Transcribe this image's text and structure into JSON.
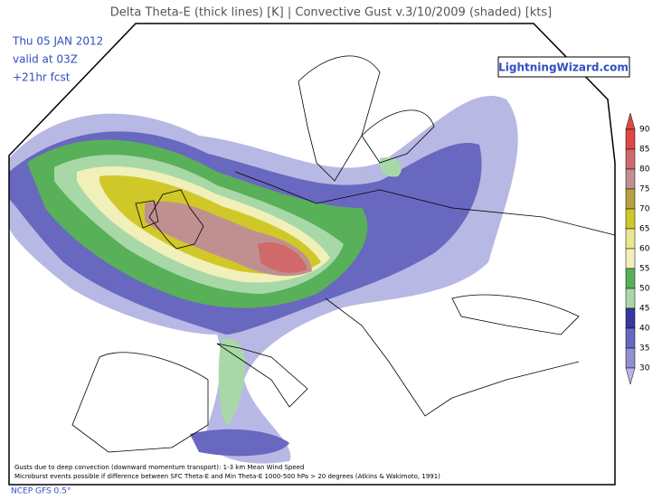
{
  "title": "Delta Theta-E (thick lines) [K]  |  Convective Gust v.3/10/2009 (shaded) [kts]",
  "info": [
    "Thu 05 JAN 2012",
    "valid at 03Z",
    "+21hr fcst"
  ],
  "brand": "LightningWizard.com",
  "legend": {
    "levels": [
      {
        "value": 90,
        "color": "#e04848"
      },
      {
        "value": 85,
        "color": "#d06a6a"
      },
      {
        "value": 80,
        "color": "#c09090"
      },
      {
        "value": 75,
        "color": "#b8a040"
      },
      {
        "value": 70,
        "color": "#d0c828"
      },
      {
        "value": 65,
        "color": "#e8e890"
      },
      {
        "value": 60,
        "color": "#f0f0b8"
      },
      {
        "value": 55,
        "color": "#58b058"
      },
      {
        "value": 50,
        "color": "#a8d8a8"
      },
      {
        "value": 45,
        "color": "#3838a0"
      },
      {
        "value": 40,
        "color": "#6868c0"
      },
      {
        "value": 35,
        "color": "#9090d0"
      },
      {
        "value": 30,
        "color": "#b8b8e4"
      }
    ]
  },
  "notes": [
    "Gusts due to deep convection (downward momentum transport): 1-3 km Mean Wind Speed",
    "Microburst events possible if difference between SFC Theta-E and Min Theta-E 1000-500 hPa > 20 degrees (Atkins & Wakimoto, 1991)"
  ],
  "source": "NCEP GFS 0.5°"
}
